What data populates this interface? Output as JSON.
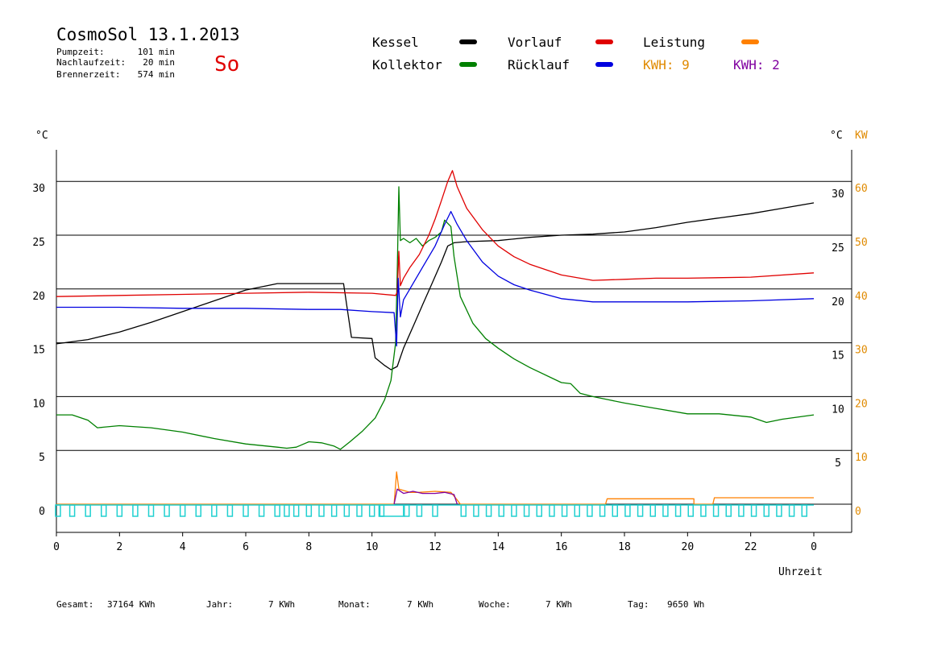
{
  "header": {
    "title": "CosmoSol 13.1.2013",
    "day": "So",
    "stats": [
      {
        "label": "Pumpzeit:",
        "value": "101 min"
      },
      {
        "label": "Nachlaufzeit:",
        "value": "20 min"
      },
      {
        "label": "Brennerzeit:",
        "value": "574 min"
      }
    ]
  },
  "legend": [
    {
      "name": "Kessel",
      "color": "#000000"
    },
    {
      "name": "Kollektor",
      "color": "#008000"
    },
    {
      "name": "Vorlauf",
      "color": "#e00000"
    },
    {
      "name": "Rücklauf",
      "color": "#0000e0"
    },
    {
      "name": "Leistung",
      "color": "#ff8000"
    }
  ],
  "kwh": [
    {
      "text": "KWH: 9",
      "color": "#e08a00"
    },
    {
      "text": "KWH: 2",
      "color": "#8000a0"
    }
  ],
  "footer": [
    {
      "label": "Gesamt:",
      "value": "37164 KWh"
    },
    {
      "label": "Jahr:",
      "value": "7 KWh"
    },
    {
      "label": "Monat:",
      "value": "7 KWh"
    },
    {
      "label": "Woche:",
      "value": "7 KWh"
    },
    {
      "label": "Tag:",
      "value": "9650 Wh"
    }
  ],
  "chart_data": {
    "type": "line",
    "xlabel": "Uhrzeit",
    "ylabel_left": "°C",
    "ylabel_right_1": "°C",
    "ylabel_right_2": "KW",
    "xlim": [
      0,
      24
    ],
    "ylim": [
      -2,
      33
    ],
    "x_ticks": [
      "0",
      "2",
      "4",
      "6",
      "8",
      "10",
      "12",
      "14",
      "16",
      "18",
      "20",
      "22",
      "0"
    ],
    "y_left_ticks": [
      0,
      5,
      10,
      15,
      20,
      25,
      30
    ],
    "y_right_ticks": [
      5,
      10,
      15,
      20,
      25,
      30
    ],
    "kw_ticks": [
      0,
      10,
      20,
      30,
      40,
      50,
      60
    ],
    "grid": true,
    "series": [
      {
        "name": "Kessel",
        "color": "#000000",
        "points": [
          [
            0,
            14.9
          ],
          [
            1,
            15.3
          ],
          [
            2,
            16.0
          ],
          [
            3,
            16.9
          ],
          [
            4,
            17.9
          ],
          [
            5,
            18.9
          ],
          [
            6,
            19.9
          ],
          [
            7,
            20.5
          ],
          [
            7.8,
            20.5
          ],
          [
            8.2,
            20.5
          ],
          [
            9.1,
            20.5
          ],
          [
            9.2,
            18.5
          ],
          [
            9.35,
            15.5
          ],
          [
            10,
            15.4
          ],
          [
            10.1,
            13.6
          ],
          [
            10.4,
            12.9
          ],
          [
            10.6,
            12.5
          ],
          [
            10.8,
            12.8
          ],
          [
            11.0,
            14.5
          ],
          [
            11.3,
            16.5
          ],
          [
            11.6,
            18.5
          ],
          [
            11.9,
            20.5
          ],
          [
            12.2,
            22.5
          ],
          [
            12.4,
            24.0
          ],
          [
            12.6,
            24.3
          ],
          [
            13,
            24.4
          ],
          [
            14,
            24.5
          ],
          [
            15,
            24.8
          ],
          [
            16,
            25.0
          ],
          [
            17,
            25.1
          ],
          [
            18,
            25.3
          ],
          [
            19,
            25.7
          ],
          [
            20,
            26.2
          ],
          [
            21,
            26.6
          ],
          [
            22,
            27.0
          ],
          [
            23,
            27.5
          ],
          [
            24,
            28.0
          ]
        ]
      },
      {
        "name": "Kollektor",
        "color": "#008000",
        "points": [
          [
            0,
            8.3
          ],
          [
            0.5,
            8.3
          ],
          [
            1,
            7.8
          ],
          [
            1.3,
            7.1
          ],
          [
            2,
            7.3
          ],
          [
            3,
            7.1
          ],
          [
            4,
            6.7
          ],
          [
            5,
            6.1
          ],
          [
            6,
            5.6
          ],
          [
            7,
            5.3
          ],
          [
            7.3,
            5.2
          ],
          [
            7.6,
            5.3
          ],
          [
            8,
            5.8
          ],
          [
            8.4,
            5.7
          ],
          [
            8.8,
            5.4
          ],
          [
            9.0,
            5.1
          ],
          [
            9.3,
            5.8
          ],
          [
            9.7,
            6.8
          ],
          [
            10.1,
            8.0
          ],
          [
            10.4,
            9.7
          ],
          [
            10.6,
            11.5
          ],
          [
            10.75,
            15.0
          ],
          [
            10.8,
            21.5
          ],
          [
            10.85,
            29.5
          ],
          [
            10.9,
            24.5
          ],
          [
            11.0,
            24.7
          ],
          [
            11.2,
            24.3
          ],
          [
            11.4,
            24.7
          ],
          [
            11.6,
            24.0
          ],
          [
            11.8,
            24.5
          ],
          [
            12.0,
            24.8
          ],
          [
            12.2,
            25.3
          ],
          [
            12.3,
            26.4
          ],
          [
            12.5,
            25.8
          ],
          [
            12.6,
            23.0
          ],
          [
            12.8,
            19.3
          ],
          [
            13.2,
            16.8
          ],
          [
            13.6,
            15.4
          ],
          [
            14,
            14.5
          ],
          [
            14.5,
            13.5
          ],
          [
            15,
            12.7
          ],
          [
            16,
            11.3
          ],
          [
            16.3,
            11.2
          ],
          [
            16.6,
            10.3
          ],
          [
            17,
            10.0
          ],
          [
            17.5,
            9.7
          ],
          [
            18,
            9.4
          ],
          [
            19,
            8.9
          ],
          [
            20,
            8.4
          ],
          [
            21,
            8.4
          ],
          [
            22,
            8.1
          ],
          [
            22.5,
            7.6
          ],
          [
            23,
            7.9
          ],
          [
            24,
            8.3
          ]
        ]
      },
      {
        "name": "Vorlauf",
        "color": "#e00000",
        "points": [
          [
            0,
            19.3
          ],
          [
            2,
            19.4
          ],
          [
            4,
            19.5
          ],
          [
            6,
            19.6
          ],
          [
            8,
            19.7
          ],
          [
            10,
            19.6
          ],
          [
            10.75,
            19.4
          ],
          [
            10.8,
            19.7
          ],
          [
            10.85,
            23.5
          ],
          [
            10.9,
            20.3
          ],
          [
            11.0,
            21.0
          ],
          [
            11.2,
            22.0
          ],
          [
            11.5,
            23.2
          ],
          [
            11.8,
            25.0
          ],
          [
            12.0,
            26.5
          ],
          [
            12.2,
            28.2
          ],
          [
            12.4,
            30.0
          ],
          [
            12.55,
            31.0
          ],
          [
            12.7,
            29.5
          ],
          [
            13,
            27.5
          ],
          [
            13.5,
            25.5
          ],
          [
            14,
            24.0
          ],
          [
            14.5,
            23.0
          ],
          [
            15,
            22.3
          ],
          [
            16,
            21.3
          ],
          [
            17,
            20.8
          ],
          [
            18,
            20.9
          ],
          [
            19,
            21.0
          ],
          [
            20,
            21.0
          ],
          [
            22,
            21.1
          ],
          [
            24,
            21.5
          ]
        ]
      },
      {
        "name": "Rücklauf",
        "color": "#0000e0",
        "points": [
          [
            0,
            18.3
          ],
          [
            2,
            18.3
          ],
          [
            4,
            18.2
          ],
          [
            6,
            18.2
          ],
          [
            8,
            18.1
          ],
          [
            9,
            18.1
          ],
          [
            10,
            17.9
          ],
          [
            10.7,
            17.8
          ],
          [
            10.78,
            14.7
          ],
          [
            10.83,
            21.0
          ],
          [
            10.9,
            17.4
          ],
          [
            11.0,
            19.0
          ],
          [
            11.3,
            20.5
          ],
          [
            11.6,
            22.0
          ],
          [
            12.0,
            24.0
          ],
          [
            12.3,
            26.0
          ],
          [
            12.5,
            27.2
          ],
          [
            12.7,
            26.0
          ],
          [
            13,
            24.5
          ],
          [
            13.5,
            22.5
          ],
          [
            14,
            21.2
          ],
          [
            14.5,
            20.4
          ],
          [
            15,
            19.9
          ],
          [
            16,
            19.1
          ],
          [
            17,
            18.8
          ],
          [
            18,
            18.8
          ],
          [
            20,
            18.8
          ],
          [
            22,
            18.9
          ],
          [
            24,
            19.1
          ]
        ]
      },
      {
        "name": "Leistung",
        "color": "#ff8000",
        "points": [
          [
            0,
            0
          ],
          [
            10.7,
            0
          ],
          [
            10.78,
            3.0
          ],
          [
            10.85,
            1.4
          ],
          [
            11.2,
            1.1
          ],
          [
            11.5,
            1.1
          ],
          [
            12.0,
            1.2
          ],
          [
            12.5,
            1.1
          ],
          [
            12.7,
            0.4
          ],
          [
            12.8,
            0
          ],
          [
            17.4,
            0
          ],
          [
            17.45,
            0.5
          ],
          [
            20.2,
            0.5
          ],
          [
            20.2,
            0
          ],
          [
            20.8,
            0
          ],
          [
            20.85,
            0.6
          ],
          [
            24,
            0.6
          ]
        ]
      },
      {
        "name": "KWH 2 curve",
        "color": "#8000a0",
        "points": [
          [
            10.7,
            0
          ],
          [
            10.8,
            1.4
          ],
          [
            11.0,
            1.0
          ],
          [
            11.3,
            1.2
          ],
          [
            11.6,
            1.0
          ],
          [
            12.0,
            1.0
          ],
          [
            12.3,
            1.1
          ],
          [
            12.6,
            0.9
          ],
          [
            12.7,
            0
          ]
        ]
      }
    ],
    "pump_pulses": [
      0.05,
      0.5,
      1.0,
      1.5,
      2.0,
      2.5,
      3.0,
      3.5,
      4.0,
      4.5,
      5.0,
      5.5,
      6.0,
      6.5,
      7.0,
      7.3,
      7.6,
      8.0,
      8.4,
      8.8,
      9.2,
      9.6,
      10.0,
      10.3,
      11.1,
      11.5,
      12.0,
      12.9,
      13.3,
      13.7,
      14.1,
      14.5,
      14.9,
      15.3,
      15.7,
      16.1,
      16.5,
      16.9,
      17.3,
      17.7,
      18.1,
      18.5,
      18.9,
      19.3,
      19.7,
      20.1,
      20.5,
      20.9,
      21.3,
      21.7,
      22.1,
      22.5,
      22.9,
      23.3,
      23.7
    ]
  }
}
